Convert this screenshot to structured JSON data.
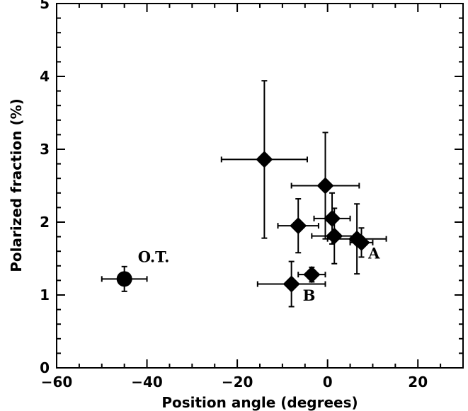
{
  "chart_data": {
    "type": "scatter",
    "xlabel": "Position angle (degrees)",
    "ylabel": "Polarized fraction (%)",
    "xlim": [
      -60,
      30
    ],
    "ylim": [
      0,
      5
    ],
    "x_ticks": [
      -60,
      -40,
      -20,
      0,
      20
    ],
    "y_ticks": [
      0,
      1,
      2,
      3,
      4,
      5
    ],
    "grid": false,
    "legend": "none",
    "color": "#000000",
    "points": [
      {
        "x": -45,
        "y": 1.22,
        "xerr": 5.0,
        "yerr": 0.17,
        "marker": "circle"
      },
      {
        "x": -14,
        "y": 2.86,
        "xerr": 9.5,
        "yerr": 1.08,
        "marker": "diamond"
      },
      {
        "x": -0.5,
        "y": 2.5,
        "xerr": 7.5,
        "yerr": 0.73,
        "marker": "diamond"
      },
      {
        "x": -6.5,
        "y": 1.95,
        "xerr": 4.5,
        "yerr": 0.37,
        "marker": "diamond"
      },
      {
        "x": 1,
        "y": 2.05,
        "xerr": 4.0,
        "yerr": 0.35,
        "marker": "diamond"
      },
      {
        "x": 1.5,
        "y": 1.81,
        "xerr": 5.0,
        "yerr": 0.38,
        "marker": "diamond"
      },
      {
        "x": 6.5,
        "y": 1.77,
        "xerr": 6.5,
        "yerr": 0.48,
        "marker": "diamond"
      },
      {
        "x": 7.5,
        "y": 1.72,
        "xerr": 2.5,
        "yerr": 0.2,
        "marker": "diamond"
      },
      {
        "x": -3.5,
        "y": 1.28,
        "xerr": 3.0,
        "yerr": 0.1,
        "marker": "diamond"
      },
      {
        "x": -8,
        "y": 1.15,
        "xerr": 7.5,
        "yerr": 0.31,
        "marker": "diamond"
      }
    ],
    "annotations": [
      {
        "text": "O.T.",
        "x": -42,
        "y": 1.45
      },
      {
        "text": "A",
        "x": 9.0,
        "y": 1.5
      },
      {
        "text": "B",
        "x": -5.5,
        "y": 0.92
      }
    ]
  }
}
